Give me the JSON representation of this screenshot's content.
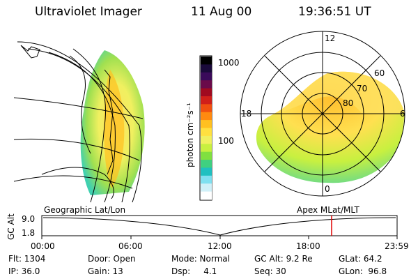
{
  "header": {
    "title": "Ultraviolet Imager",
    "date": "11 Aug 00",
    "time": "19:36:51 UT"
  },
  "colorbar": {
    "unit_label": "photon cm⁻²s⁻¹",
    "ticks": [
      "1000",
      "100"
    ],
    "colors": [
      "#000000",
      "#1a0a3a",
      "#3a0a5a",
      "#6a0a4a",
      "#a00a20",
      "#d0201a",
      "#f05010",
      "#ff8a10",
      "#ffc020",
      "#ffe040",
      "#f0f060",
      "#c8f040",
      "#80e040",
      "#40d080",
      "#20c0c0",
      "#80e0f0",
      "#d0f0f8",
      "#ffffff"
    ]
  },
  "polar_plot": {
    "labels": [
      "12",
      "60",
      "70",
      "80",
      "18",
      "6",
      "0"
    ]
  },
  "timeline": {
    "left_title": "Geographic Lat/Lon",
    "right_title": "Apex MLat/MLT",
    "y_axis_label": "GC Alt",
    "y_ticks": [
      "9.0",
      "1.8"
    ],
    "x_ticks": [
      "00:00",
      "06:00",
      "12:00",
      "18:00",
      "23:59"
    ],
    "marker_time": "19:36:51"
  },
  "footer": {
    "row1": [
      "Flt: 1304",
      "Door: Open",
      "Mode: Normal",
      "GC Alt: 9.2 Re",
      "GLat: 64.2"
    ],
    "row2": [
      "IP: 36.0",
      "Gain: 13",
      "Dsp:     4.1",
      "Seq: 30",
      "GLon:  96.8"
    ]
  }
}
